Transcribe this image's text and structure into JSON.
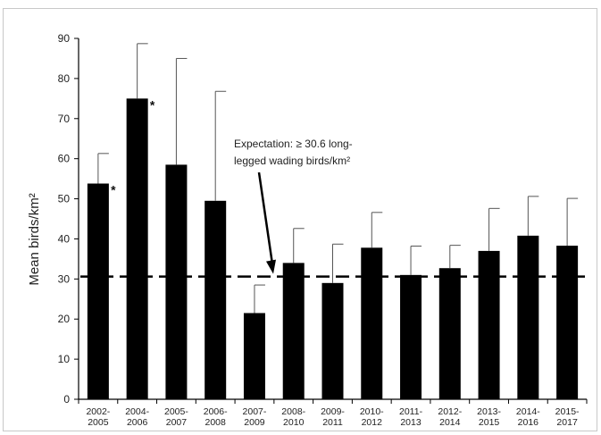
{
  "chart_data": {
    "type": "bar",
    "categories": [
      "2002-2005",
      "2004-2006",
      "2005-2007",
      "2006-2008",
      "2007-2009",
      "2008-2010",
      "2009-2011",
      "2010-2012",
      "2011-2013",
      "2012-2014",
      "2013-2015",
      "2014-2016",
      "2015-2017"
    ],
    "category_lines": [
      [
        "2002-",
        "2005"
      ],
      [
        "2004-",
        "2006"
      ],
      [
        "2005-",
        "2007"
      ],
      [
        "2006-",
        "2008"
      ],
      [
        "2007-",
        "2009"
      ],
      [
        "2008-",
        "2010"
      ],
      [
        "2009-",
        "2011"
      ],
      [
        "2010-",
        "2012"
      ],
      [
        "2011-",
        "2013"
      ],
      [
        "2012-",
        "2014"
      ],
      [
        "2013-",
        "2015"
      ],
      [
        "2014-",
        "2016"
      ],
      [
        "2015-",
        "2017"
      ]
    ],
    "values": [
      53.8,
      75.0,
      58.5,
      49.5,
      21.5,
      34.0,
      29.0,
      37.8,
      31.0,
      32.7,
      37.0,
      40.8,
      38.3
    ],
    "error_upper": [
      61.3,
      88.7,
      85.0,
      76.8,
      28.5,
      42.6,
      38.7,
      46.6,
      38.2,
      38.4,
      47.6,
      50.6,
      50.1
    ],
    "significance": [
      "*",
      "*",
      "",
      "",
      "",
      "",
      "",
      "",
      "",
      "",
      "",
      "",
      ""
    ],
    "ylabel": "Mean birds/km²",
    "xlabel": "",
    "ylim": [
      0,
      90
    ],
    "yticks": [
      0,
      10,
      20,
      30,
      40,
      50,
      60,
      70,
      80,
      90
    ],
    "expectation_line": 30.6,
    "annotation": {
      "lines": [
        "Expectation: ≥ 30.6 long-",
        "legged wading birds/km²"
      ]
    },
    "grid": false,
    "bar_color": "#000000"
  }
}
